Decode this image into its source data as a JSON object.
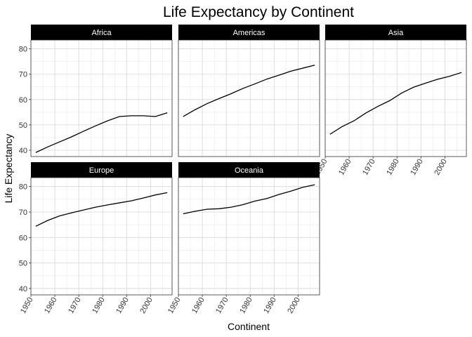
{
  "chart_data": {
    "type": "line",
    "title": "Life Expectancy by Continent",
    "xlabel": "Continent",
    "ylabel": "Life Expectancy",
    "xlim": [
      1950,
      2009
    ],
    "ylim": [
      37.5,
      83.5
    ],
    "x_ticks": [
      1950,
      1960,
      1970,
      1980,
      1990,
      2000
    ],
    "y_ticks": [
      40,
      50,
      60,
      70,
      80
    ],
    "grid": true,
    "x": [
      1952,
      1957,
      1962,
      1967,
      1972,
      1977,
      1982,
      1987,
      1992,
      1997,
      2002,
      2007
    ],
    "series": [
      {
        "name": "Africa",
        "values": [
          39.1,
          41.3,
          43.3,
          45.3,
          47.5,
          49.6,
          51.6,
          53.3,
          53.6,
          53.6,
          53.3,
          54.8
        ]
      },
      {
        "name": "Americas",
        "values": [
          53.3,
          56.0,
          58.4,
          60.4,
          62.3,
          64.4,
          66.2,
          68.1,
          69.6,
          71.2,
          72.4,
          73.6
        ]
      },
      {
        "name": "Asia",
        "values": [
          46.3,
          49.3,
          51.6,
          54.7,
          57.3,
          59.6,
          62.6,
          64.9,
          66.5,
          68.0,
          69.2,
          70.7
        ]
      },
      {
        "name": "Europe",
        "values": [
          64.4,
          66.7,
          68.5,
          69.7,
          70.8,
          71.9,
          72.8,
          73.6,
          74.4,
          75.5,
          76.7,
          77.6
        ]
      },
      {
        "name": "Oceania",
        "values": [
          69.3,
          70.3,
          71.1,
          71.3,
          71.9,
          72.9,
          74.3,
          75.3,
          76.9,
          78.2,
          79.7,
          80.7
        ]
      }
    ]
  }
}
